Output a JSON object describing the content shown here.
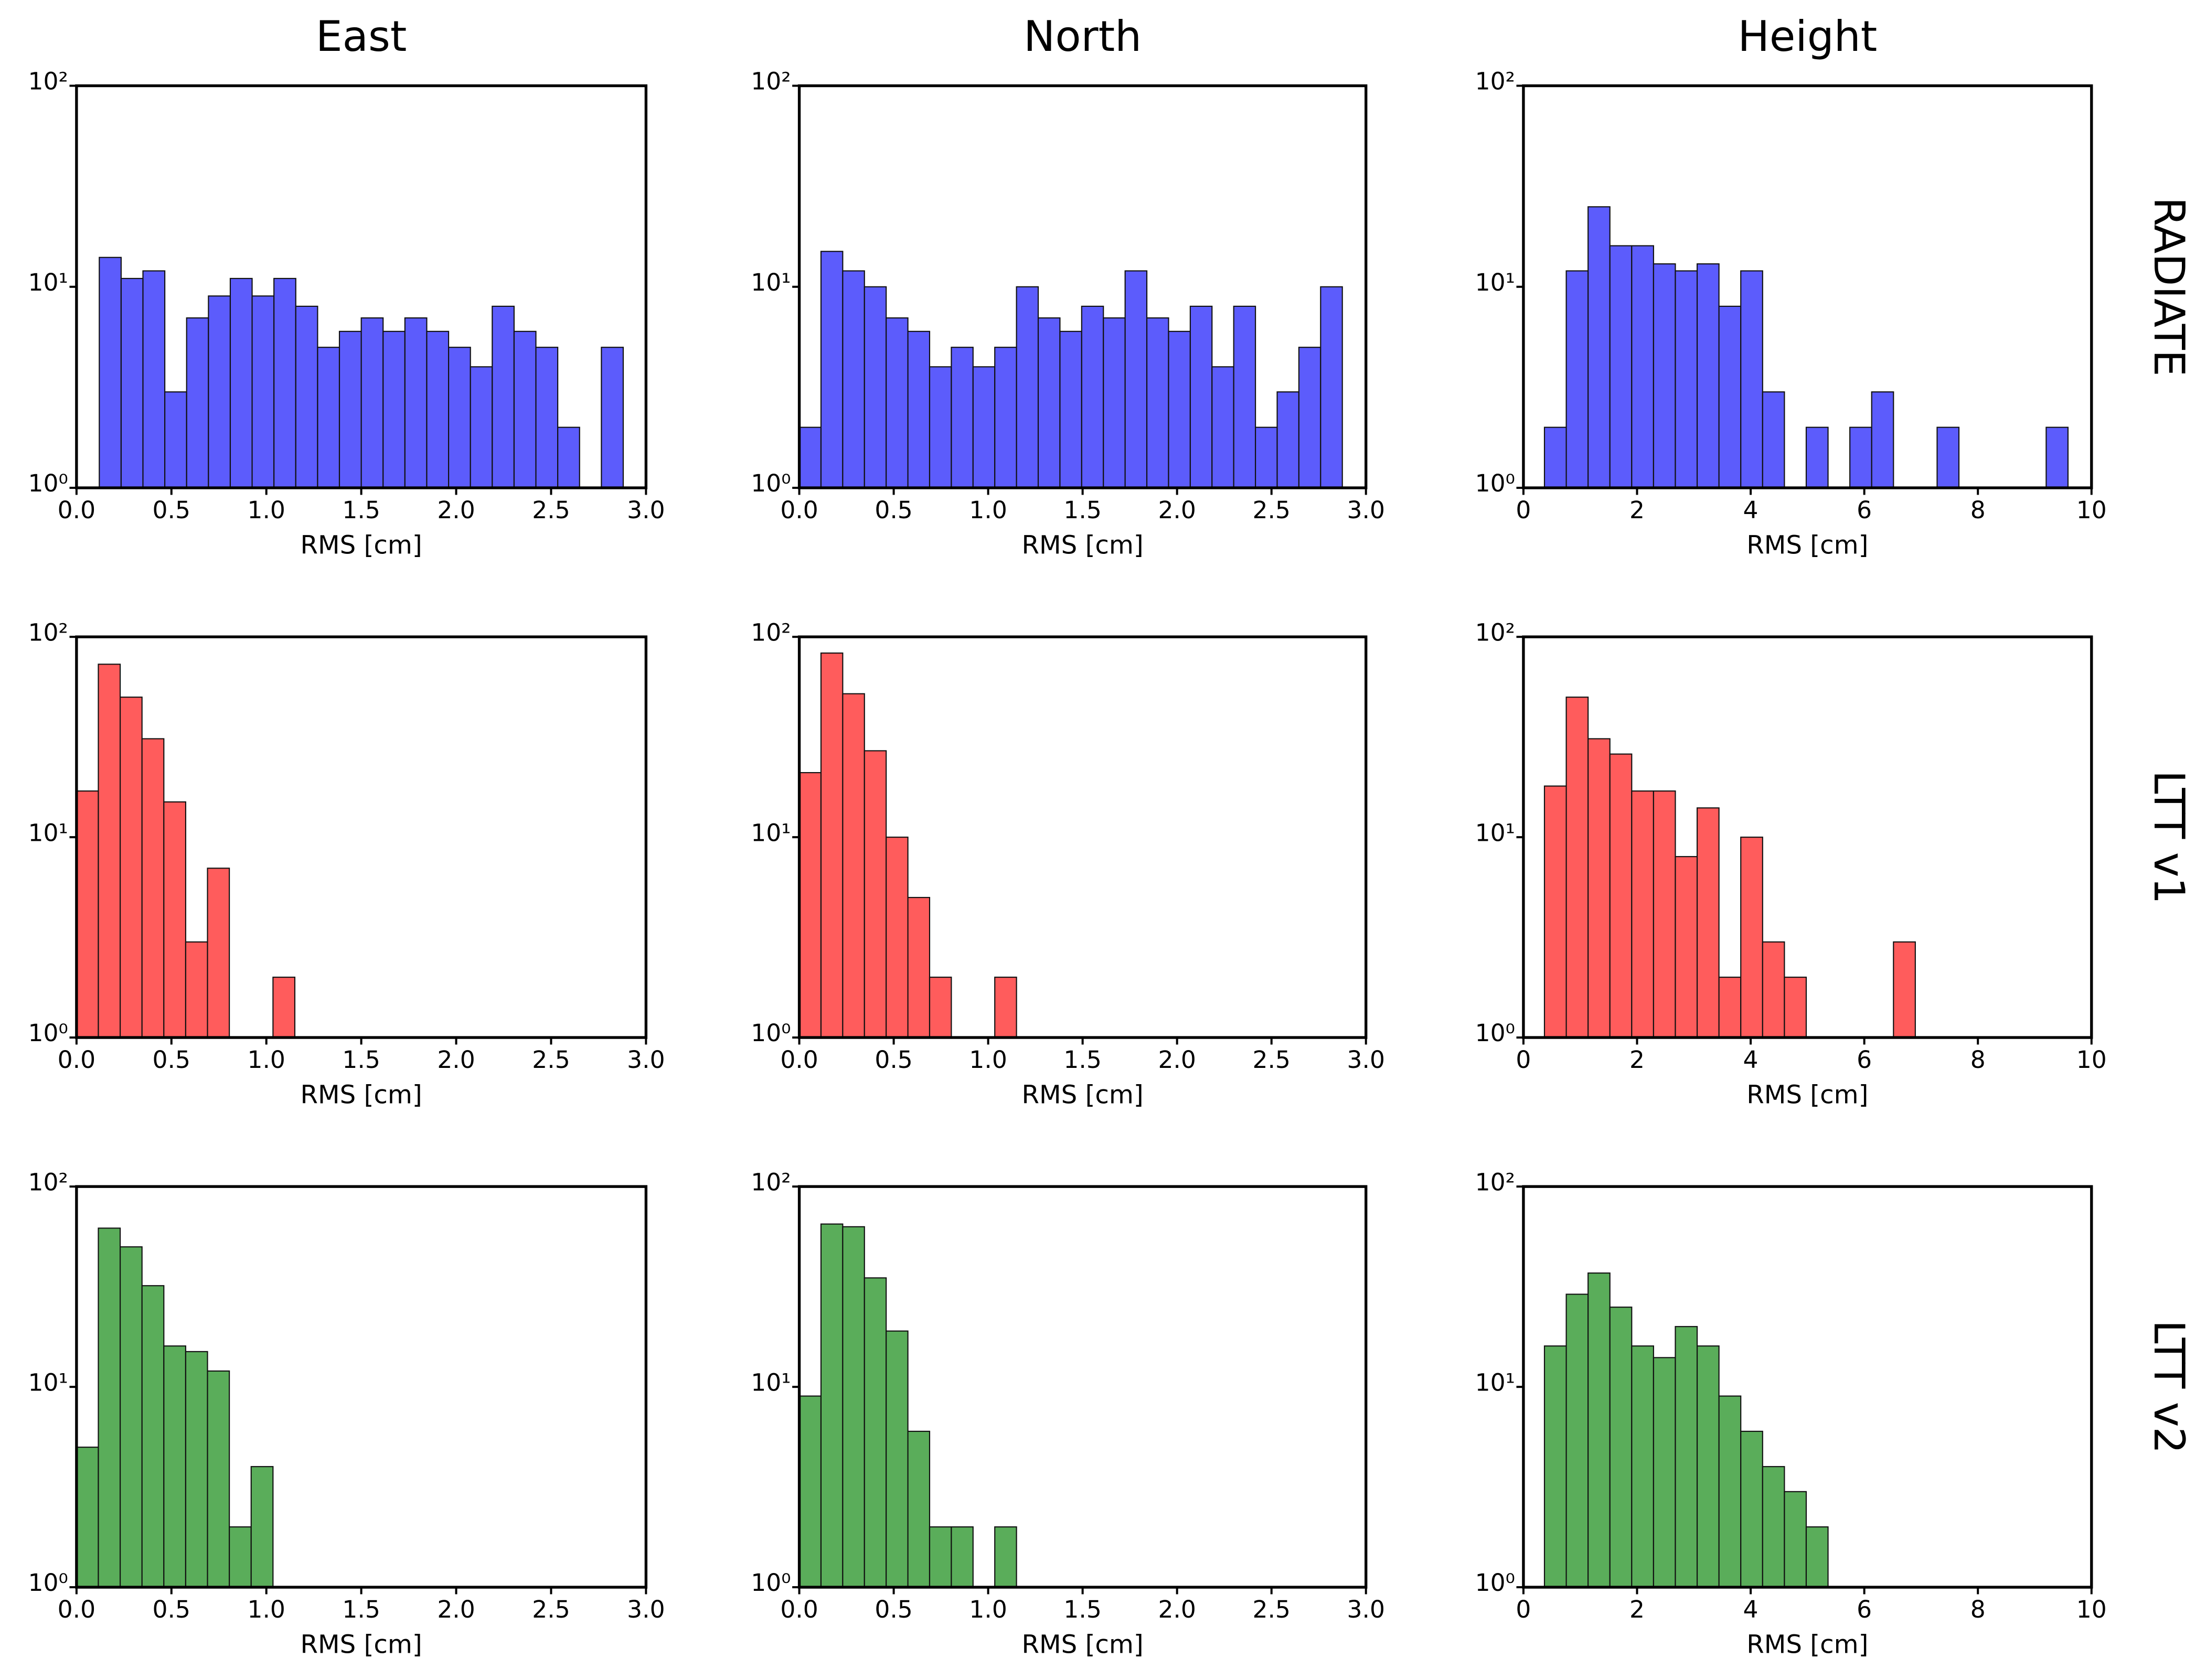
{
  "column_titles": [
    "East",
    "North",
    "Height"
  ],
  "row_titles": [
    "RADIATE",
    "LTT v1",
    "LTT v2"
  ],
  "chart_data": [
    {
      "type": "histogram",
      "color": "#5c5cfc",
      "xlabel": "RMS [cm]",
      "log_y": true,
      "bins": [
        0.12,
        0.235,
        0.35,
        0.465,
        0.58,
        0.695,
        0.81,
        0.925,
        1.04,
        1.155,
        1.27,
        1.385,
        1.5,
        1.615,
        1.73,
        1.845,
        1.96,
        2.075,
        2.19,
        2.305,
        2.42,
        2.535,
        2.65,
        2.765,
        2.88
      ],
      "values": [
        14,
        11,
        12,
        3,
        7,
        9,
        11,
        9,
        11,
        8,
        5,
        6,
        7,
        6,
        7,
        6,
        5,
        4,
        8,
        6,
        5,
        2,
        0,
        5
      ],
      "xlim": [
        0,
        3
      ],
      "xticks": [
        {
          "value": 0,
          "label": "0.0"
        },
        0.5,
        {
          "value": 1,
          "label": "1.0"
        },
        1.5,
        {
          "value": 2,
          "label": "2.0"
        },
        2.5,
        {
          "value": 3,
          "label": "3.0"
        }
      ],
      "ylim": [
        1,
        100
      ],
      "yticks": [
        {
          "value": 1,
          "label": "10⁰"
        },
        {
          "value": 10,
          "label": "10¹"
        },
        {
          "value": 100,
          "label": "10²"
        }
      ]
    },
    {
      "type": "histogram",
      "color": "#5c5cfc",
      "xlabel": "RMS [cm]",
      "log_y": true,
      "bins": [
        0,
        0.115,
        0.23,
        0.345,
        0.46,
        0.575,
        0.69,
        0.805,
        0.92,
        1.035,
        1.15,
        1.265,
        1.38,
        1.495,
        1.61,
        1.725,
        1.84,
        1.955,
        2.07,
        2.185,
        2.3,
        2.415,
        2.53,
        2.645,
        2.76,
        2.875
      ],
      "values": [
        2,
        15,
        12,
        10,
        7,
        6,
        4,
        5,
        4,
        5,
        10,
        7,
        6,
        8,
        7,
        12,
        7,
        6,
        8,
        4,
        8,
        2,
        3,
        5,
        10
      ],
      "xlim": [
        0,
        3
      ],
      "xticks": [
        {
          "value": 0,
          "label": "0.0"
        },
        0.5,
        {
          "value": 1,
          "label": "1.0"
        },
        1.5,
        {
          "value": 2,
          "label": "2.0"
        },
        2.5,
        {
          "value": 3,
          "label": "3.0"
        }
      ],
      "ylim": [
        1,
        100
      ],
      "yticks": [
        {
          "value": 1,
          "label": "10⁰"
        },
        {
          "value": 10,
          "label": "10¹"
        },
        {
          "value": 100,
          "label": "10²"
        }
      ]
    },
    {
      "type": "histogram",
      "color": "#5c5cfc",
      "xlabel": "RMS [cm]",
      "log_y": true,
      "bins": [
        0.37,
        0.754,
        1.138,
        1.522,
        1.906,
        2.29,
        2.674,
        3.058,
        3.442,
        3.826,
        4.21,
        4.594,
        4.978,
        5.362,
        5.746,
        6.13,
        6.514,
        6.898,
        7.282,
        7.666,
        8.05,
        8.434,
        8.818,
        9.202,
        9.586
      ],
      "values": [
        2,
        12,
        25,
        16,
        16,
        13,
        12,
        13,
        8,
        12,
        3,
        0,
        2,
        0,
        2,
        3,
        0,
        0,
        2,
        0,
        0,
        0,
        0,
        2
      ],
      "xlim": [
        0,
        10
      ],
      "xticks": [
        0,
        2,
        4,
        6,
        8,
        10
      ],
      "ylim": [
        1,
        100
      ],
      "yticks": [
        {
          "value": 1,
          "label": "10⁰"
        },
        {
          "value": 10,
          "label": "10¹"
        },
        {
          "value": 100,
          "label": "10²"
        }
      ]
    },
    {
      "type": "histogram",
      "color": "#ff5c5c",
      "xlabel": "RMS [cm]",
      "log_y": true,
      "bins": [
        0,
        0.115,
        0.23,
        0.345,
        0.46,
        0.575,
        0.69,
        0.805,
        0.92,
        1.035,
        1.15
      ],
      "values": [
        17,
        73,
        50,
        31,
        15,
        3,
        7,
        0,
        0,
        2
      ],
      "xlim": [
        0,
        3
      ],
      "xticks": [
        {
          "value": 0,
          "label": "0.0"
        },
        0.5,
        {
          "value": 1,
          "label": "1.0"
        },
        1.5,
        {
          "value": 2,
          "label": "2.0"
        },
        2.5,
        {
          "value": 3,
          "label": "3.0"
        }
      ],
      "ylim": [
        1,
        100
      ],
      "yticks": [
        {
          "value": 1,
          "label": "10⁰"
        },
        {
          "value": 10,
          "label": "10¹"
        },
        {
          "value": 100,
          "label": "10²"
        }
      ]
    },
    {
      "type": "histogram",
      "color": "#ff5c5c",
      "xlabel": "RMS [cm]",
      "log_y": true,
      "bins": [
        0,
        0.115,
        0.23,
        0.345,
        0.46,
        0.575,
        0.69,
        0.805,
        0.92,
        1.035,
        1.15
      ],
      "values": [
        21,
        83,
        52,
        27,
        10,
        5,
        2,
        0,
        0,
        2
      ],
      "xlim": [
        0,
        3
      ],
      "xticks": [
        {
          "value": 0,
          "label": "0.0"
        },
        0.5,
        {
          "value": 1,
          "label": "1.0"
        },
        1.5,
        {
          "value": 2,
          "label": "2.0"
        },
        2.5,
        {
          "value": 3,
          "label": "3.0"
        }
      ],
      "ylim": [
        1,
        100
      ],
      "yticks": [
        {
          "value": 1,
          "label": "10⁰"
        },
        {
          "value": 10,
          "label": "10¹"
        },
        {
          "value": 100,
          "label": "10²"
        }
      ]
    },
    {
      "type": "histogram",
      "color": "#ff5c5c",
      "xlabel": "RMS [cm]",
      "log_y": true,
      "bins": [
        0.37,
        0.754,
        1.138,
        1.522,
        1.906,
        2.29,
        2.674,
        3.058,
        3.442,
        3.826,
        4.21,
        4.594,
        4.978,
        5.362,
        5.746,
        6.13,
        6.514,
        6.898
      ],
      "values": [
        18,
        50,
        31,
        26,
        17,
        17,
        8,
        14,
        2,
        10,
        3,
        2,
        0,
        0,
        0,
        0,
        3
      ],
      "xlim": [
        0,
        10
      ],
      "xticks": [
        0,
        2,
        4,
        6,
        8,
        10
      ],
      "ylim": [
        1,
        100
      ],
      "yticks": [
        {
          "value": 1,
          "label": "10⁰"
        },
        {
          "value": 10,
          "label": "10¹"
        },
        {
          "value": 100,
          "label": "10²"
        }
      ]
    },
    {
      "type": "histogram",
      "color": "#5aad5a",
      "xlabel": "RMS [cm]",
      "log_y": true,
      "bins": [
        0,
        0.115,
        0.23,
        0.345,
        0.46,
        0.575,
        0.69,
        0.805,
        0.92,
        1.035
      ],
      "values": [
        5,
        62,
        50,
        32,
        16,
        15,
        12,
        2,
        4
      ],
      "xlim": [
        0,
        3
      ],
      "xticks": [
        {
          "value": 0,
          "label": "0.0"
        },
        0.5,
        {
          "value": 1,
          "label": "1.0"
        },
        1.5,
        {
          "value": 2,
          "label": "2.0"
        },
        2.5,
        {
          "value": 3,
          "label": "3.0"
        }
      ],
      "ylim": [
        1,
        100
      ],
      "yticks": [
        {
          "value": 1,
          "label": "10⁰"
        },
        {
          "value": 10,
          "label": "10¹"
        },
        {
          "value": 100,
          "label": "10²"
        }
      ]
    },
    {
      "type": "histogram",
      "color": "#5aad5a",
      "xlabel": "RMS [cm]",
      "log_y": true,
      "bins": [
        0,
        0.115,
        0.23,
        0.345,
        0.46,
        0.575,
        0.69,
        0.805,
        0.92,
        1.035,
        1.15
      ],
      "values": [
        9,
        65,
        63,
        35,
        19,
        6,
        2,
        2,
        0,
        2
      ],
      "xlim": [
        0,
        3
      ],
      "xticks": [
        {
          "value": 0,
          "label": "0.0"
        },
        0.5,
        {
          "value": 1,
          "label": "1.0"
        },
        1.5,
        {
          "value": 2,
          "label": "2.0"
        },
        2.5,
        {
          "value": 3,
          "label": "3.0"
        }
      ],
      "ylim": [
        1,
        100
      ],
      "yticks": [
        {
          "value": 1,
          "label": "10⁰"
        },
        {
          "value": 10,
          "label": "10¹"
        },
        {
          "value": 100,
          "label": "10²"
        }
      ]
    },
    {
      "type": "histogram",
      "color": "#5aad5a",
      "xlabel": "RMS [cm]",
      "log_y": true,
      "bins": [
        0.37,
        0.754,
        1.138,
        1.522,
        1.906,
        2.29,
        2.674,
        3.058,
        3.442,
        3.826,
        4.21,
        4.594,
        4.978,
        5.362
      ],
      "values": [
        16,
        29,
        37,
        25,
        16,
        14,
        20,
        16,
        9,
        6,
        4,
        3,
        2
      ],
      "xlim": [
        0,
        10
      ],
      "xticks": [
        0,
        2,
        4,
        6,
        8,
        10
      ],
      "ylim": [
        1,
        100
      ],
      "yticks": [
        {
          "value": 1,
          "label": "10⁰"
        },
        {
          "value": 10,
          "label": "10¹"
        },
        {
          "value": 100,
          "label": "10²"
        }
      ]
    }
  ]
}
